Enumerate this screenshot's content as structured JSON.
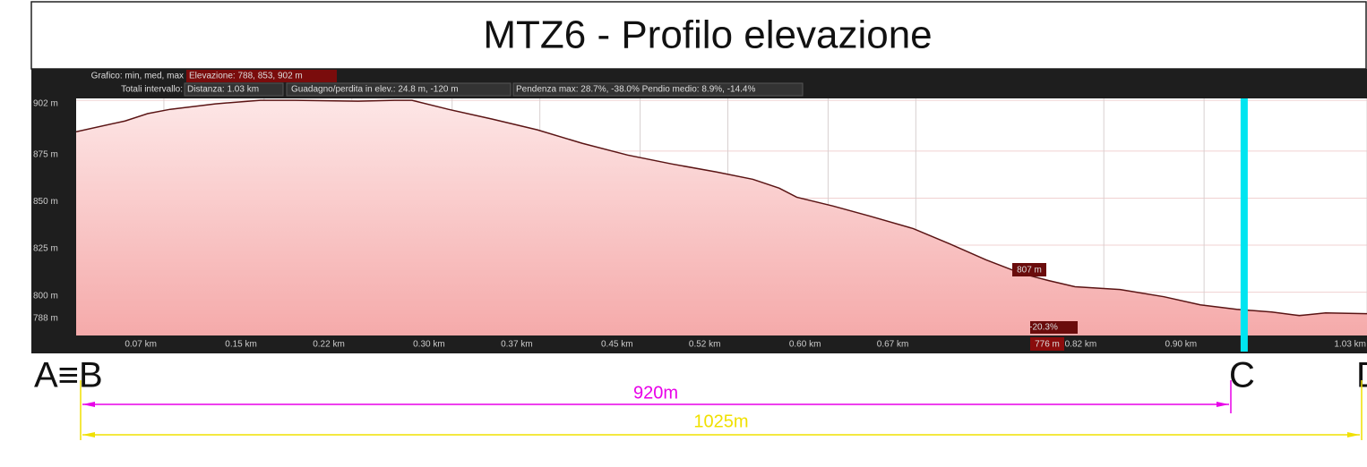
{
  "chart_data": {
    "type": "area",
    "title": "MTZ6 - Profilo elevazione",
    "info": {
      "graph_label": "Grafico: min, med, max",
      "elevation": "Elevazione: 788, 853, 902 m",
      "totals_label": "Totali intervallo:",
      "distance": "Distanza: 1.03 km",
      "gain_loss": "Guadagno/perdita in elev.: 24.8 m, -120 m",
      "slope": "Pendenza max: 28.7%, -38.0% Pendio medio: 8.9%, -14.4%"
    },
    "x": [
      0,
      0.039,
      0.057,
      0.075,
      0.111,
      0.147,
      0.175,
      0.225,
      0.254,
      0.268,
      0.297,
      0.332,
      0.368,
      0.404,
      0.44,
      0.475,
      0.511,
      0.54,
      0.561,
      0.575,
      0.604,
      0.633,
      0.668,
      0.697,
      0.726,
      0.754,
      0.776,
      0.797,
      0.833,
      0.868,
      0.897,
      0.926,
      0.954,
      0.976,
      0.997,
      1.03
    ],
    "series": [
      {
        "name": "Elevazione",
        "color": "#5a1414",
        "values": [
          885.3,
          891,
          894.9,
          897.2,
          900.1,
          902,
          902,
          901.5,
          902,
          902,
          897.2,
          892,
          886.3,
          879.1,
          872.9,
          868.2,
          863.9,
          860,
          855.3,
          850.5,
          845.8,
          840.5,
          833.8,
          825.7,
          817.2,
          810,
          806.2,
          802.9,
          801.4,
          797.6,
          793.3,
          790.9,
          789.5,
          787.6,
          789,
          788.6
        ]
      }
    ],
    "xlim": [
      0,
      1.03
    ],
    "ylim": [
      777,
      903
    ],
    "xticks": [
      {
        "value": 0.07,
        "label": "0.07 km"
      },
      {
        "value": 0.15,
        "label": "0.15 km"
      },
      {
        "value": 0.22,
        "label": "0.22 km"
      },
      {
        "value": 0.3,
        "label": "0.30 km"
      },
      {
        "value": 0.37,
        "label": "0.37 km"
      },
      {
        "value": 0.45,
        "label": "0.45 km"
      },
      {
        "value": 0.52,
        "label": "0.52 km"
      },
      {
        "value": 0.6,
        "label": "0.60 km"
      },
      {
        "value": 0.67,
        "label": "0.67 km"
      },
      {
        "value": 0.82,
        "label": "0.82 km"
      },
      {
        "value": 0.9,
        "label": "0.90 km"
      },
      {
        "value": 1.03,
        "label": "1.03 km"
      }
    ],
    "yticks": [
      {
        "value": 902,
        "label": "902 m"
      },
      {
        "value": 875,
        "label": "875 m"
      },
      {
        "value": 850,
        "label": "850 m"
      },
      {
        "value": 825,
        "label": "825 m"
      },
      {
        "value": 800,
        "label": "800 m"
      },
      {
        "value": 788,
        "label": "788 m"
      }
    ],
    "grid": true,
    "cursor": {
      "x": 0.932,
      "color": "#00e5f0"
    },
    "annotations": {
      "cursor_elev": "807 m",
      "cursor_slope": "-20.3%",
      "cursor_min": "776 m",
      "point_ab": "A≡B",
      "point_c": "C",
      "point_d": "D",
      "dist_c": "920m",
      "dist_d": "1025m"
    }
  }
}
